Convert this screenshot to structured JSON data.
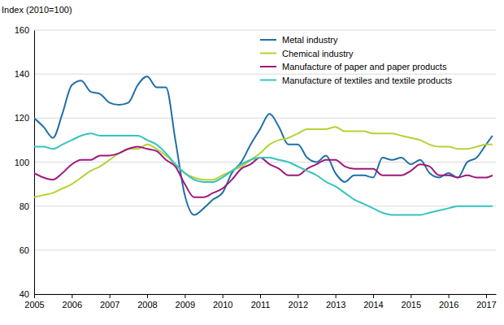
{
  "chart_data": {
    "type": "line",
    "y_label": "Index (2010=100)",
    "x": [
      2005,
      2005.25,
      2005.5,
      2005.75,
      2006,
      2006.25,
      2006.5,
      2006.75,
      2007,
      2007.25,
      2007.5,
      2007.75,
      2008,
      2008.25,
      2008.5,
      2008.75,
      2009,
      2009.25,
      2009.5,
      2009.75,
      2010,
      2010.25,
      2010.5,
      2010.75,
      2011,
      2011.25,
      2011.5,
      2011.75,
      2012,
      2012.25,
      2012.5,
      2012.75,
      2013,
      2013.25,
      2013.5,
      2013.75,
      2014,
      2014.25,
      2014.5,
      2014.75,
      2015,
      2015.25,
      2015.5,
      2015.75,
      2016,
      2016.25,
      2016.5,
      2016.75,
      2017,
      2017.17
    ],
    "series": [
      {
        "name": "Metal industry",
        "color": "#1f6fa6",
        "values": [
          120,
          116,
          111,
          122,
          135,
          137,
          132,
          131,
          127,
          126,
          127,
          135,
          139,
          134,
          134,
          110,
          85,
          76,
          79,
          83,
          86,
          95,
          100,
          108,
          115,
          122,
          116,
          108,
          108,
          102,
          100,
          103,
          95,
          91,
          94,
          94,
          93,
          102,
          101,
          102,
          99,
          101,
          95,
          93,
          95,
          93,
          100,
          102,
          108,
          112
        ]
      },
      {
        "name": "Chemical industry",
        "color": "#b3d335",
        "values": [
          84,
          85,
          86,
          88,
          90,
          93,
          96,
          98,
          101,
          104,
          106,
          106,
          108,
          106,
          103,
          99,
          95,
          93,
          92,
          92,
          94,
          96,
          98,
          101,
          104,
          108,
          110,
          111,
          113,
          115,
          115,
          115,
          116,
          114,
          114,
          114,
          113,
          113,
          113,
          112,
          111,
          110,
          108,
          107,
          107,
          106,
          106,
          107,
          108,
          108
        ]
      },
      {
        "name": "Manufacture of paper and paper products",
        "color": "#a0177b",
        "values": [
          95,
          93,
          92,
          95,
          99,
          101,
          101,
          103,
          103,
          104,
          106,
          107,
          106,
          105,
          101,
          98,
          90,
          84,
          84,
          86,
          88,
          92,
          97,
          99,
          102,
          99,
          97,
          94,
          94,
          97,
          99,
          101,
          101,
          98,
          97,
          97,
          97,
          94,
          94,
          94,
          96,
          99,
          98,
          94,
          94,
          93,
          94,
          93,
          93,
          94
        ]
      },
      {
        "name": "Manufacture of textiles and textile products",
        "color": "#35c4bf",
        "values": [
          107,
          107,
          106,
          108,
          110,
          112,
          113,
          112,
          112,
          112,
          112,
          112,
          110,
          108,
          104,
          99,
          95,
          92,
          91,
          91,
          93,
          96,
          99,
          101,
          102,
          102,
          101,
          100,
          98,
          96,
          94,
          91,
          89,
          86,
          83,
          81,
          79,
          77,
          76,
          76,
          76,
          76,
          77,
          78,
          79,
          80,
          80,
          80,
          80,
          80
        ]
      }
    ],
    "xlim": [
      2005,
      2017.26
    ],
    "ylim": [
      40,
      160
    ],
    "xticks": [
      2005,
      2006,
      2007,
      2008,
      2009,
      2010,
      2011,
      2012,
      2013,
      2014,
      2015,
      2016,
      2017
    ],
    "yticks": [
      40,
      60,
      80,
      100,
      120,
      140,
      160
    ],
    "grid": true,
    "legend": "top-right"
  }
}
